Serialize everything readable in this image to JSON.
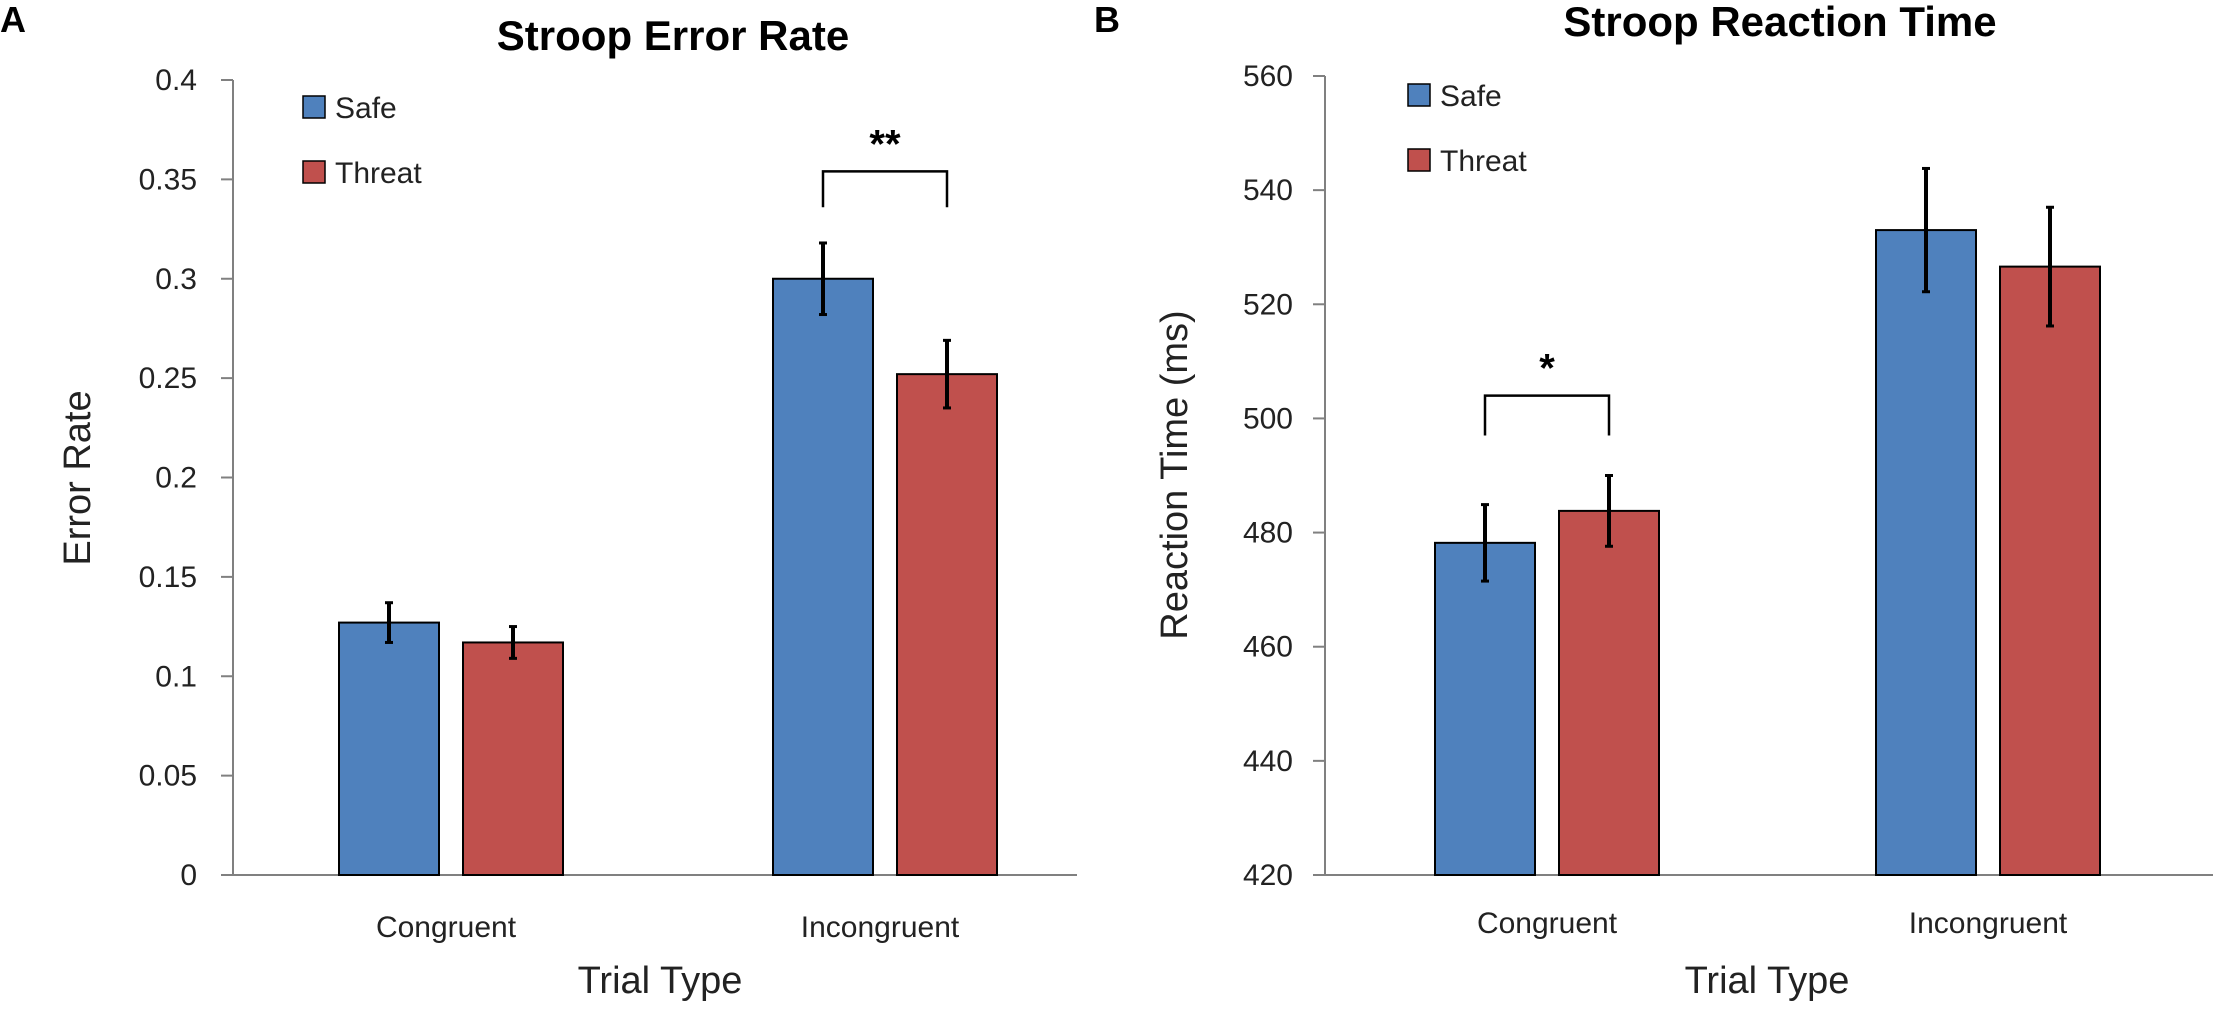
{
  "chart_data": [
    {
      "panel": "A",
      "type": "bar",
      "title": "Stroop Error Rate",
      "xlabel": "Trial Type",
      "ylabel": "Error Rate",
      "categories": [
        "Congruent",
        "Incongruent"
      ],
      "ylim": [
        0,
        0.4
      ],
      "yticks": [
        0,
        0.05,
        0.1,
        0.15,
        0.2,
        0.25,
        0.3,
        0.35,
        0.4
      ],
      "ytick_labels": [
        "0",
        "0.05",
        "0.1",
        "0.15",
        "0.2",
        "0.25",
        "0.3",
        "0.35",
        "0.4"
      ],
      "series": [
        {
          "name": "Safe",
          "color": "#4f81bd",
          "values": [
            0.127,
            0.3
          ],
          "errors": [
            0.01,
            0.018
          ]
        },
        {
          "name": "Threat",
          "color": "#c0504d",
          "values": [
            0.117,
            0.252
          ],
          "errors": [
            0.008,
            0.017
          ]
        }
      ],
      "significance": [
        {
          "category_index": 1,
          "label": "**",
          "top_value": 0.354,
          "drop_value": 0.336
        }
      ],
      "legend": "top-left"
    },
    {
      "panel": "B",
      "type": "bar",
      "title": "Stroop Reaction Time",
      "xlabel": "Trial Type",
      "ylabel": "Reaction Time (ms)",
      "categories": [
        "Congruent",
        "Incongruent"
      ],
      "ylim": [
        420,
        560
      ],
      "yticks": [
        420,
        440,
        460,
        480,
        500,
        520,
        540,
        560
      ],
      "ytick_labels": [
        "420",
        "440",
        "460",
        "480",
        "500",
        "520",
        "540",
        "560"
      ],
      "series": [
        {
          "name": "Safe",
          "color": "#4f81bd",
          "values": [
            478.2,
            533.0
          ],
          "errors": [
            6.7,
            10.8
          ]
        },
        {
          "name": "Threat",
          "color": "#c0504d",
          "values": [
            483.8,
            526.6
          ],
          "errors": [
            6.2,
            10.4
          ]
        }
      ],
      "significance": [
        {
          "category_index": 0,
          "label": "*",
          "top_value": 504,
          "drop_value": 497
        }
      ],
      "legend": "top-left"
    }
  ]
}
